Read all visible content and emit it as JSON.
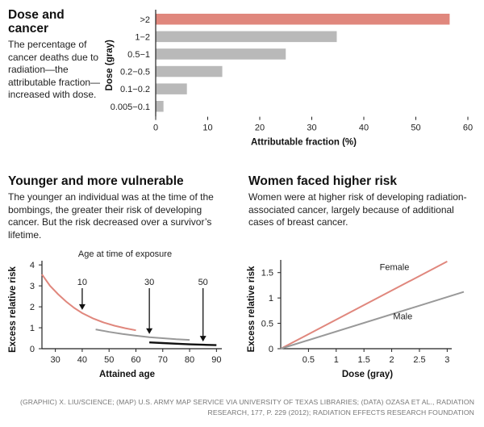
{
  "panels": {
    "dose_cancer": {
      "title_line1": "Dose and",
      "title_line2": "cancer",
      "description": "The percentage of cancer deaths due to radiation—the attributable fraction—increased with dose."
    },
    "younger": {
      "title": "Younger and more vulnerable",
      "description": "The younger an individual was at the time of the bombings, the greater their risk of developing cancer. But the risk decreased over a survivor’s lifetime."
    },
    "women": {
      "title": "Women faced higher risk",
      "description": "Women were at higher risk of developing radiation-associated cancer, largely because of additional cases of breast cancer."
    }
  },
  "credit": {
    "line1": "(GRAPHIC) X. LIU/SCIENCE; (MAP) U.S. ARMY MAP SERVICE VIA UNIVERSITY OF TEXAS LIBRARIES; (DATA) OZASA ET AL., RADIATION",
    "line2": "RESEARCH, 177, P. 229 (2012); RADIATION EFFECTS RESEARCH FOUNDATION"
  },
  "chart_data": [
    {
      "type": "bar",
      "orientation": "horizontal",
      "categories": [
        ">2",
        "1−2",
        "0.5−1",
        "0.2−0.5",
        "0.1−0.2",
        "0.005−0.1"
      ],
      "values": [
        56.5,
        34.8,
        25,
        12.8,
        6,
        1.5
      ],
      "colors": [
        "#e0877d",
        "#b9b9b9",
        "#b9b9b9",
        "#b9b9b9",
        "#b9b9b9",
        "#b9b9b9"
      ],
      "xlabel": "Attributable fraction (%)",
      "ylabel": "Dose (gray)",
      "xlim": [
        0,
        60
      ],
      "xticks": [
        0,
        10,
        20,
        30,
        40,
        50,
        60
      ]
    },
    {
      "type": "line",
      "annotation_title": "Age at time of exposure",
      "xlabel": "Attained age",
      "ylabel": "Excess relative risk",
      "xlim": [
        25,
        92
      ],
      "ylim": [
        0,
        4.2
      ],
      "xticks": [
        30,
        40,
        50,
        60,
        70,
        80,
        90
      ],
      "yticks": [
        0,
        1,
        2,
        3,
        4
      ],
      "series": [
        {
          "name": "10",
          "color": "#e0877d",
          "x": [
            25,
            28,
            31,
            34,
            37,
            40,
            44,
            48,
            52,
            56,
            60
          ],
          "y": [
            3.55,
            3.0,
            2.6,
            2.25,
            1.95,
            1.7,
            1.45,
            1.25,
            1.1,
            0.98,
            0.88
          ]
        },
        {
          "name": "30",
          "color": "#999999",
          "x": [
            45,
            50,
            55,
            60,
            65,
            70,
            75,
            80
          ],
          "y": [
            0.92,
            0.8,
            0.7,
            0.62,
            0.55,
            0.5,
            0.45,
            0.42
          ]
        },
        {
          "name": "50",
          "color": "#111111",
          "x": [
            65,
            70,
            75,
            80,
            85,
            90
          ],
          "y": [
            0.3,
            0.27,
            0.24,
            0.21,
            0.19,
            0.17
          ]
        }
      ],
      "arrows": [
        {
          "label": "10",
          "x": 40,
          "y": 1.7
        },
        {
          "label": "30",
          "x": 65,
          "y": 0.55
        },
        {
          "label": "50",
          "x": 85,
          "y": 0.19
        }
      ]
    },
    {
      "type": "line",
      "xlabel": "Dose (gray)",
      "ylabel": "Excess relative risk",
      "xlim": [
        0,
        3.3
      ],
      "ylim": [
        0,
        1.75
      ],
      "xticks": [
        0.5,
        1,
        1.5,
        2,
        2.5,
        3
      ],
      "yticks": [
        0,
        0.5,
        1,
        1.5
      ],
      "series": [
        {
          "name": "Female",
          "color": "#e0877d",
          "x": [
            0,
            3
          ],
          "y": [
            0,
            1.72
          ]
        },
        {
          "name": "Male",
          "color": "#999999",
          "x": [
            0,
            3.3
          ],
          "y": [
            0,
            1.12
          ]
        }
      ]
    }
  ]
}
